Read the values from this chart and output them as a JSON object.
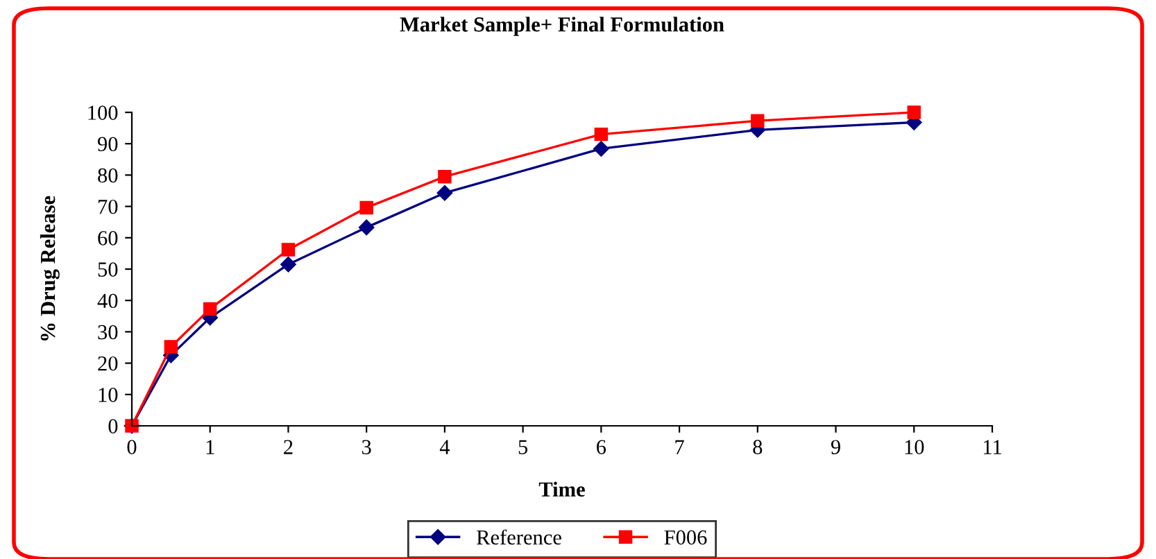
{
  "chart_data": {
    "type": "line",
    "title": "Market Sample+ Final Formulation",
    "xlabel": "Time",
    "ylabel": "% Drug Release",
    "x": [
      0,
      0.5,
      1,
      2,
      3,
      4,
      6,
      8,
      10
    ],
    "series": [
      {
        "name": "Reference",
        "color": "#000080",
        "marker": "diamond",
        "values": [
          0,
          22.5,
          34.5,
          51.5,
          63.3,
          74.3,
          88.4,
          94.4,
          96.8
        ]
      },
      {
        "name": "F006",
        "color": "#ff0000",
        "marker": "square",
        "values": [
          0,
          25.2,
          37.3,
          56.2,
          69.6,
          79.5,
          93.0,
          97.3,
          100
        ]
      }
    ],
    "xlim": [
      0,
      11
    ],
    "xticks": [
      0,
      1,
      2,
      3,
      4,
      5,
      6,
      7,
      8,
      9,
      10,
      11
    ],
    "ylim": [
      0,
      100
    ],
    "yticks": [
      0,
      10,
      20,
      30,
      40,
      50,
      60,
      70,
      80,
      90,
      100
    ],
    "grid": false,
    "legend": "bottom"
  }
}
